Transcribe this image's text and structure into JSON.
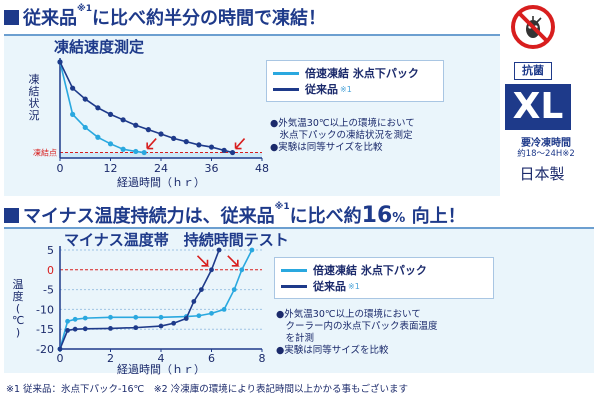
{
  "headline1": {
    "a": "従来品",
    "sup": "※1",
    "b": "に比べ約半分の時間で凍結！"
  },
  "headline2": {
    "a": "マイナス温度持続力は、従来品",
    "sup": "※1",
    "b": "に比べ約",
    "c": "16",
    "d": "%",
    "e": " 向上！"
  },
  "side": {
    "icon": "no-germs-icon",
    "antibacterial": "抗菌",
    "size": "XL",
    "freeze_label": "要冷凍時間",
    "freeze_range": "約18〜24H※2",
    "made_in": "日本製"
  },
  "footer": "※1 従来品：氷点下パック-16℃　※2 冷凍庫の環境により表記時間以上かかる事もございます",
  "colors": {
    "new": "#2aa8df",
    "old": "#1e3a8a",
    "accent": "#d81e1e",
    "panel": "#eaf5fb"
  },
  "chart_data": [
    {
      "type": "line",
      "title": "凍結速度測定",
      "xlabel": "経過時間（ｈｒ）",
      "ylabel": "凍結状況",
      "ylabel_chars": [
        "凍",
        "結",
        "状",
        "況"
      ],
      "x_ticks": [
        "0",
        "12",
        "24",
        "36",
        "48"
      ],
      "xlim": [
        0,
        48
      ],
      "annotation": "凍結点",
      "series": [
        {
          "name": "倍速凍結 氷点下パック",
          "x": [
            0,
            3,
            6,
            9,
            12,
            15,
            18,
            20
          ],
          "y": [
            100,
            52,
            40,
            31,
            25,
            20,
            18,
            17
          ]
        },
        {
          "name": "従来品",
          "sup": "※1",
          "x": [
            0,
            3,
            6,
            9,
            12,
            15,
            18,
            21,
            24,
            27,
            30,
            33,
            36,
            39,
            41
          ],
          "y": [
            100,
            76,
            66,
            58,
            52,
            47,
            42,
            38,
            34,
            30,
            27,
            24,
            22,
            19,
            17
          ]
        }
      ],
      "notes": [
        "●外気温30℃以上の環境において",
        "　氷点下パックの凍結状況を測定",
        "●実験は同等サイズを比較"
      ]
    },
    {
      "type": "line",
      "title": "マイナス温度帯　持続時間テスト",
      "xlabel": "経過時間（ｈｒ）",
      "ylabel": "温度（℃）",
      "ylabel_chars": [
        "温",
        "度",
        "(",
        "℃",
        ")"
      ],
      "x_ticks": [
        "0",
        "2",
        "4",
        "6",
        "8"
      ],
      "y_ticks": [
        "5",
        "0",
        "-5",
        "-10",
        "-15",
        "-20"
      ],
      "xlim": [
        0,
        8
      ],
      "ylim": [
        -20,
        5
      ],
      "series": [
        {
          "name": "倍速凍結 氷点下パック",
          "x": [
            0,
            0.3,
            0.6,
            1,
            2,
            3,
            4,
            5,
            5.5,
            6,
            6.5,
            6.9,
            7.2,
            7.6
          ],
          "y": [
            -20,
            -13,
            -12.5,
            -12.2,
            -12,
            -12,
            -12,
            -11.8,
            -11.6,
            -11,
            -10,
            -5,
            0,
            5
          ]
        },
        {
          "name": "従来品",
          "sup": "※1",
          "x": [
            0,
            0.3,
            0.6,
            1,
            2,
            3,
            4,
            4.5,
            5,
            5.3,
            5.6,
            6,
            6.3
          ],
          "y": [
            -20,
            -15.3,
            -15,
            -14.9,
            -14.8,
            -14.6,
            -14.2,
            -13.5,
            -12.3,
            -8,
            -5,
            0,
            5
          ]
        }
      ],
      "notes": [
        "●外気温30℃以上の環境において",
        "　クーラー内の氷点下パック表面温度",
        "　を計測",
        "●実験は同等サイズを比較"
      ]
    }
  ]
}
